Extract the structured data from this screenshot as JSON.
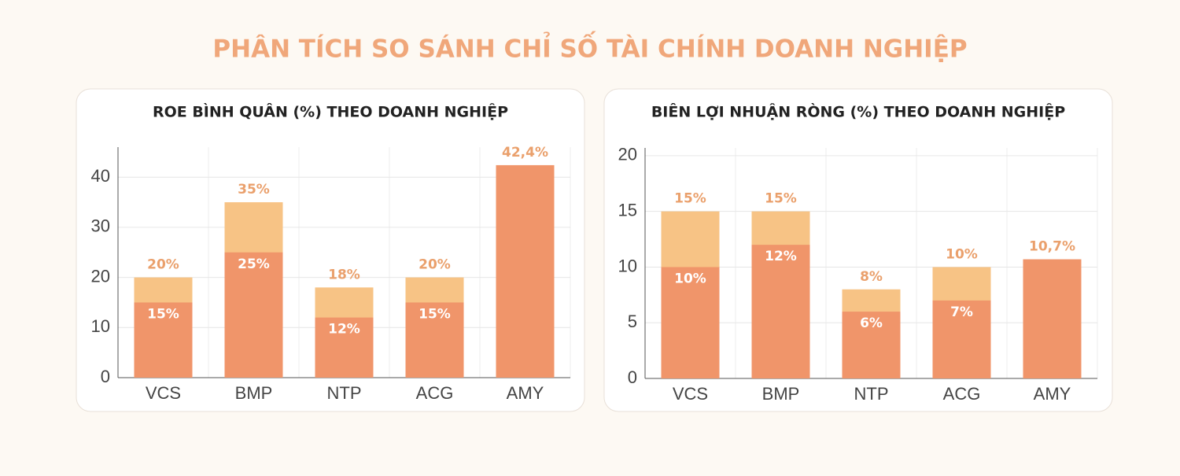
{
  "title": "PHÂN TÍCH SO SÁNH CHỈ SỐ TÀI CHÍNH DOANH NGHIỆP",
  "chart_data": [
    {
      "type": "bar",
      "barmode": "overlay",
      "title": "ROE BÌNH QUÂN (%) THEO DOANH NGHIỆP",
      "categories": [
        "VCS",
        "BMP",
        "NTP",
        "ACG",
        "AMY"
      ],
      "series": [
        {
          "color": "#f7c385",
          "values": [
            20,
            35,
            18,
            20,
            null
          ],
          "value_labels": [
            "20%",
            "35%",
            "18%",
            "20%",
            null
          ]
        },
        {
          "color": "#f0956a",
          "values": [
            15,
            25,
            12,
            15,
            42.4
          ],
          "value_labels": [
            "15%",
            "25%",
            "12%",
            "15%",
            "42,4%"
          ]
        }
      ],
      "ylim": [
        0,
        46
      ],
      "yticks": [
        0,
        10,
        20,
        30,
        40
      ],
      "grid": true
    },
    {
      "type": "bar",
      "barmode": "overlay",
      "title": "BIÊN LỢI NHUẬN RÒNG (%) THEO DOANH NGHIỆP",
      "categories": [
        "VCS",
        "BMP",
        "NTP",
        "ACG",
        "AMY"
      ],
      "series": [
        {
          "color": "#f7c385",
          "values": [
            15,
            15,
            8,
            10,
            null
          ],
          "value_labels": [
            "15%",
            "15%",
            "8%",
            "10%",
            null
          ]
        },
        {
          "color": "#f0956a",
          "values": [
            10,
            12,
            6,
            7,
            10.7
          ],
          "value_labels": [
            "10%",
            "12%",
            "6%",
            "7%",
            "10,7%"
          ]
        }
      ],
      "ylim": [
        0,
        20.7
      ],
      "yticks": [
        0,
        5,
        10,
        15,
        20
      ],
      "grid": true
    }
  ]
}
